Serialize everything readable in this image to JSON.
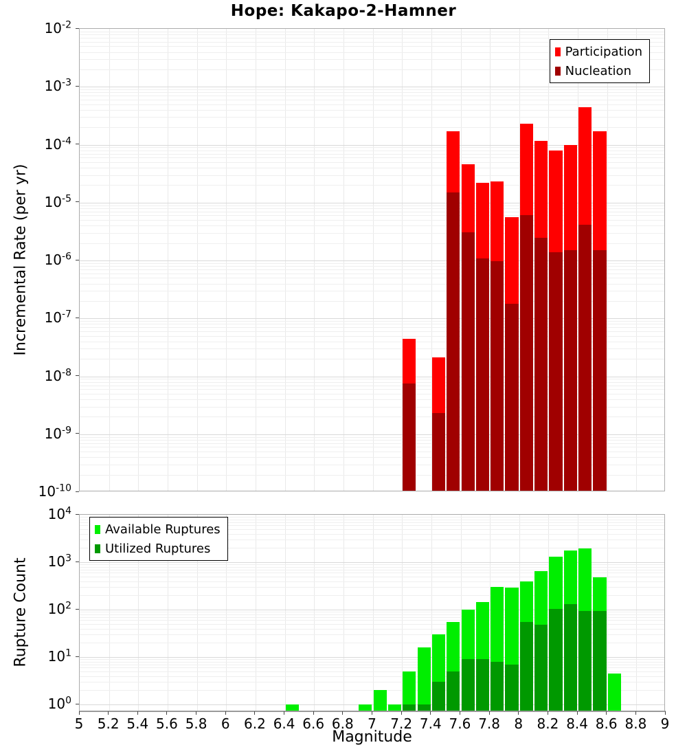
{
  "title": "Hope: Kakapo-2-Hamner",
  "chart_data": [
    {
      "type": "bar",
      "id": "incremental-rate-mfd",
      "ylabel": "Incremental Rate (per yr)",
      "y_scale": "log",
      "ylim": [
        1e-10,
        0.01
      ],
      "y_tick_exponents": [
        -2,
        -3,
        -4,
        -5,
        -6,
        -7,
        -8,
        -9,
        -10
      ],
      "xlim": [
        5,
        9
      ],
      "bin_width": 0.1,
      "grid": true,
      "legend_position": "top-right",
      "series": [
        {
          "name": "Participation",
          "color": "#ff0000",
          "points": [
            [
              7.25,
              4.4e-08
            ],
            [
              7.45,
              2.1e-08
            ],
            [
              7.55,
              0.00017
            ],
            [
              7.65,
              4.6e-05
            ],
            [
              7.75,
              2.2e-05
            ],
            [
              7.85,
              2.3e-05
            ],
            [
              7.95,
              5.6e-06
            ],
            [
              8.05,
              0.00023
            ],
            [
              8.15,
              0.000116
            ],
            [
              8.25,
              8e-05
            ],
            [
              8.35,
              0.0001
            ],
            [
              8.45,
              0.00044
            ],
            [
              8.55,
              0.00017
            ]
          ]
        },
        {
          "name": "Nucleation",
          "color": "#a00000",
          "points": [
            [
              7.25,
              7.5e-09
            ],
            [
              7.45,
              2.3e-09
            ],
            [
              7.55,
              1.5e-05
            ],
            [
              7.65,
              3.1e-06
            ],
            [
              7.75,
              1.1e-06
            ],
            [
              7.85,
              9.7e-07
            ],
            [
              7.95,
              1.8e-07
            ],
            [
              8.05,
              6.1e-06
            ],
            [
              8.15,
              2.5e-06
            ],
            [
              8.25,
              1.4e-06
            ],
            [
              8.35,
              1.5e-06
            ],
            [
              8.45,
              4.1e-06
            ],
            [
              8.55,
              1.5e-06
            ]
          ]
        }
      ]
    },
    {
      "type": "bar",
      "id": "rupture-count",
      "ylabel": "Rupture Count",
      "xlabel": "Magnitude",
      "y_scale": "log",
      "ylim": [
        1,
        10000
      ],
      "y_tick_exponents": [
        4,
        3,
        2,
        1,
        0
      ],
      "xlim": [
        5,
        9
      ],
      "bin_width": 0.1,
      "grid": true,
      "legend_position": "top-left",
      "x_tick_labels": [
        "5",
        "5.2",
        "5.4",
        "5.6",
        "5.8",
        "6",
        "6.2",
        "6.4",
        "6.6",
        "6.8",
        "7",
        "7.2",
        "7.4",
        "7.6",
        "7.8",
        "8",
        "8.2",
        "8.4",
        "8.6",
        "8.8",
        "9"
      ],
      "series": [
        {
          "name": "Available Ruptures",
          "color": "#00ee00",
          "points": [
            [
              6.45,
              1
            ],
            [
              6.95,
              1
            ],
            [
              7.05,
              2
            ],
            [
              7.15,
              1
            ],
            [
              7.25,
              5
            ],
            [
              7.35,
              16
            ],
            [
              7.45,
              30
            ],
            [
              7.55,
              55
            ],
            [
              7.65,
              100
            ],
            [
              7.75,
              145
            ],
            [
              7.85,
              300
            ],
            [
              7.95,
              295
            ],
            [
              8.05,
              390
            ],
            [
              8.15,
              650
            ],
            [
              8.25,
              1300
            ],
            [
              8.35,
              1750
            ],
            [
              8.45,
              1950
            ],
            [
              8.55,
              480
            ],
            [
              8.65,
              4.5
            ]
          ]
        },
        {
          "name": "Utilized Ruptures",
          "color": "#009900",
          "points": [
            [
              7.25,
              1
            ],
            [
              7.35,
              1
            ],
            [
              7.45,
              3
            ],
            [
              7.55,
              5
            ],
            [
              7.65,
              9
            ],
            [
              7.75,
              9
            ],
            [
              7.85,
              8
            ],
            [
              7.95,
              7
            ],
            [
              8.05,
              55
            ],
            [
              8.15,
              48
            ],
            [
              8.25,
              105
            ],
            [
              8.35,
              130
            ],
            [
              8.45,
              95
            ],
            [
              8.55,
              95
            ]
          ]
        }
      ]
    }
  ]
}
